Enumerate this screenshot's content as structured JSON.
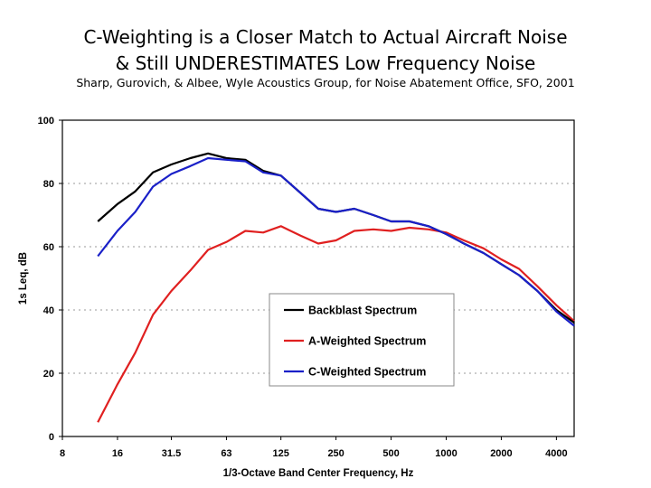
{
  "header": {
    "title_line1": "C-Weighting is a Closer Match to Actual Aircraft Noise",
    "title_line2": "& Still UNDERESTIMATES Low Frequency Noise",
    "subtitle": "Sharp, Gurovich, & Albee, Wyle Acoustics Group, for Noise Abatement Office, SFO, 2001"
  },
  "chart_data": {
    "type": "line",
    "xlabel": "1/3-Octave Band Center Frequency, Hz",
    "ylabel": "1s Leq, dB",
    "xscale": "log2",
    "xlim": [
      8,
      5000
    ],
    "ylim": [
      0,
      100
    ],
    "xticks": [
      "8",
      "16",
      "31.5",
      "63",
      "125",
      "250",
      "500",
      "1000",
      "2000",
      "4000"
    ],
    "yticks": [
      "0",
      "20",
      "40",
      "60",
      "80",
      "100"
    ],
    "grid": "horizontal-dotted",
    "legend_position": "center",
    "x": [
      12.5,
      16,
      20,
      25,
      31.5,
      40,
      50,
      63,
      80,
      100,
      125,
      160,
      200,
      250,
      315,
      400,
      500,
      630,
      800,
      1000,
      1250,
      1600,
      2000,
      2500,
      3150,
      4000,
      5000
    ],
    "series": [
      {
        "name": "Backblast Spectrum",
        "color": "#000000",
        "values": [
          68,
          73.5,
          77.5,
          83.5,
          86,
          88,
          89.5,
          88,
          87.5,
          84,
          82.5,
          77,
          72,
          71,
          72,
          70,
          68,
          68,
          66.5,
          64,
          61,
          58,
          54.5,
          51,
          46,
          40,
          36
        ]
      },
      {
        "name": "A-Weighted Spectrum",
        "color": "#e02020",
        "values": [
          4.5,
          16.5,
          26.5,
          38.5,
          46,
          52.5,
          59,
          61.5,
          65,
          64.5,
          66.5,
          63.5,
          61,
          62,
          65,
          65.5,
          65,
          66,
          65.5,
          64.5,
          62,
          59.5,
          56,
          53,
          47.5,
          41.5,
          36.5
        ]
      },
      {
        "name": "C-Weighted Spectrum",
        "color": "#1a20c8",
        "values": [
          57,
          65,
          71,
          79,
          83,
          85.5,
          88,
          87.5,
          87,
          83.5,
          82.5,
          77,
          72,
          71,
          72,
          70,
          68,
          68,
          66.5,
          64,
          61,
          58,
          54.5,
          51,
          46,
          39.5,
          35
        ]
      }
    ]
  }
}
